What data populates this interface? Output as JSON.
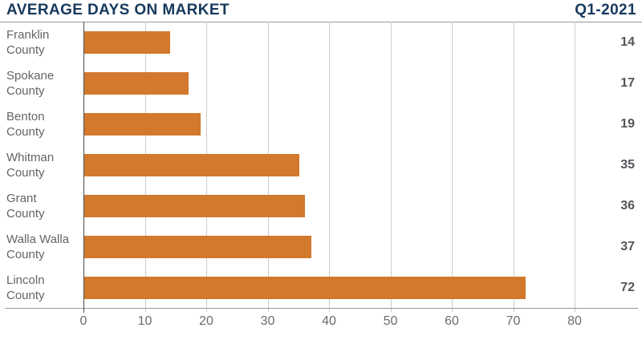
{
  "header": {
    "title": "AVERAGE DAYS ON MARKET",
    "period": "Q1-2021"
  },
  "chart_data": {
    "type": "bar",
    "orientation": "horizontal",
    "title": "AVERAGE DAYS ON MARKET",
    "subtitle": "Q1-2021",
    "categories": [
      "Franklin County",
      "Spokane County",
      "Benton County",
      "Whitman County",
      "Grant County",
      "Walla Walla County",
      "Lincoln County"
    ],
    "values": [
      14,
      17,
      19,
      35,
      36,
      37,
      72
    ],
    "value_labels": [
      "14",
      "17",
      "19",
      "35",
      "36",
      "37",
      "72"
    ],
    "xlabel": "",
    "ylabel": "",
    "xlim": [
      0,
      90
    ],
    "xticks": [
      0,
      10,
      20,
      30,
      40,
      50,
      60,
      70,
      80
    ],
    "grid": "vertical",
    "legend_position": "none",
    "colors": {
      "bar": "#D2792E",
      "title": "#17395D",
      "category_label": "#636569",
      "value_label": "#55565A",
      "tick_label": "#6A6B6E",
      "gridline": "#CBCCCE",
      "axis_line": "#97989B",
      "zero_line": "#4B4C4E"
    }
  }
}
